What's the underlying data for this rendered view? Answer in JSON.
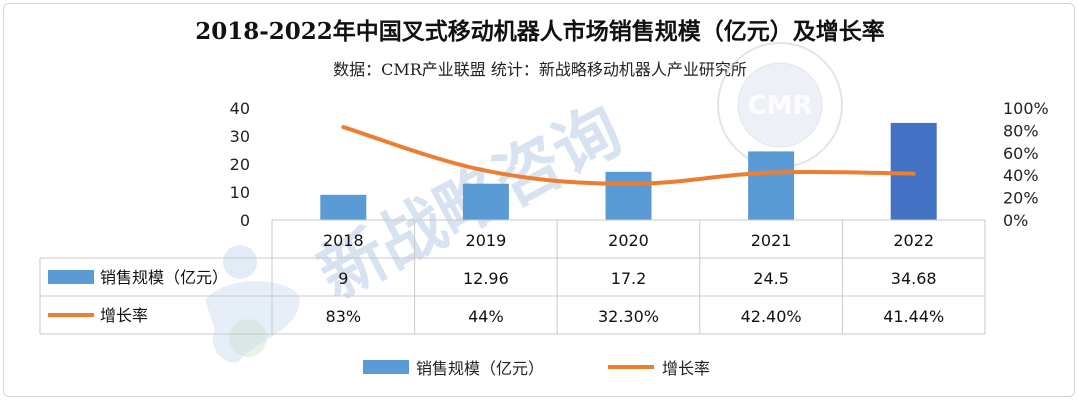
{
  "chart_data": {
    "type": "bar",
    "title": "2018-2022年中国叉式移动机器人市场销售规模（亿元）及增长率",
    "subtitle": "数据：CMR产业联盟 统计：新战略移动机器人产业研究所",
    "categories": [
      "2018",
      "2019",
      "2020",
      "2021",
      "2022"
    ],
    "series": [
      {
        "name": "销售规模（亿元）",
        "kind": "bar",
        "axis": "left",
        "color": "#5b9bd5",
        "values": [
          9,
          12.96,
          17.2,
          24.5,
          34.68
        ],
        "labels": [
          "9",
          "12.96",
          "17.2",
          "24.5",
          "34.68"
        ]
      },
      {
        "name": "增长率",
        "kind": "line",
        "axis": "right",
        "color": "#ed7d31",
        "values": [
          83,
          44,
          32.3,
          42.4,
          41.44
        ],
        "labels": [
          "83%",
          "44%",
          "32.30%",
          "42.40%",
          "41.44%"
        ]
      }
    ],
    "y_left": {
      "min": 0,
      "max": 40,
      "ticks": [
        "0",
        "10",
        "20",
        "30",
        "40"
      ]
    },
    "y_right": {
      "min": 0,
      "max": 100,
      "ticks": [
        "0%",
        "20%",
        "40%",
        "60%",
        "80%",
        "100%"
      ]
    },
    "last_bar_color": "#4472c4",
    "data_table": true,
    "legend": {
      "position": "bottom"
    },
    "grid": false
  },
  "watermark": {
    "text": "新战略咨询",
    "seal_text": "CMR"
  }
}
